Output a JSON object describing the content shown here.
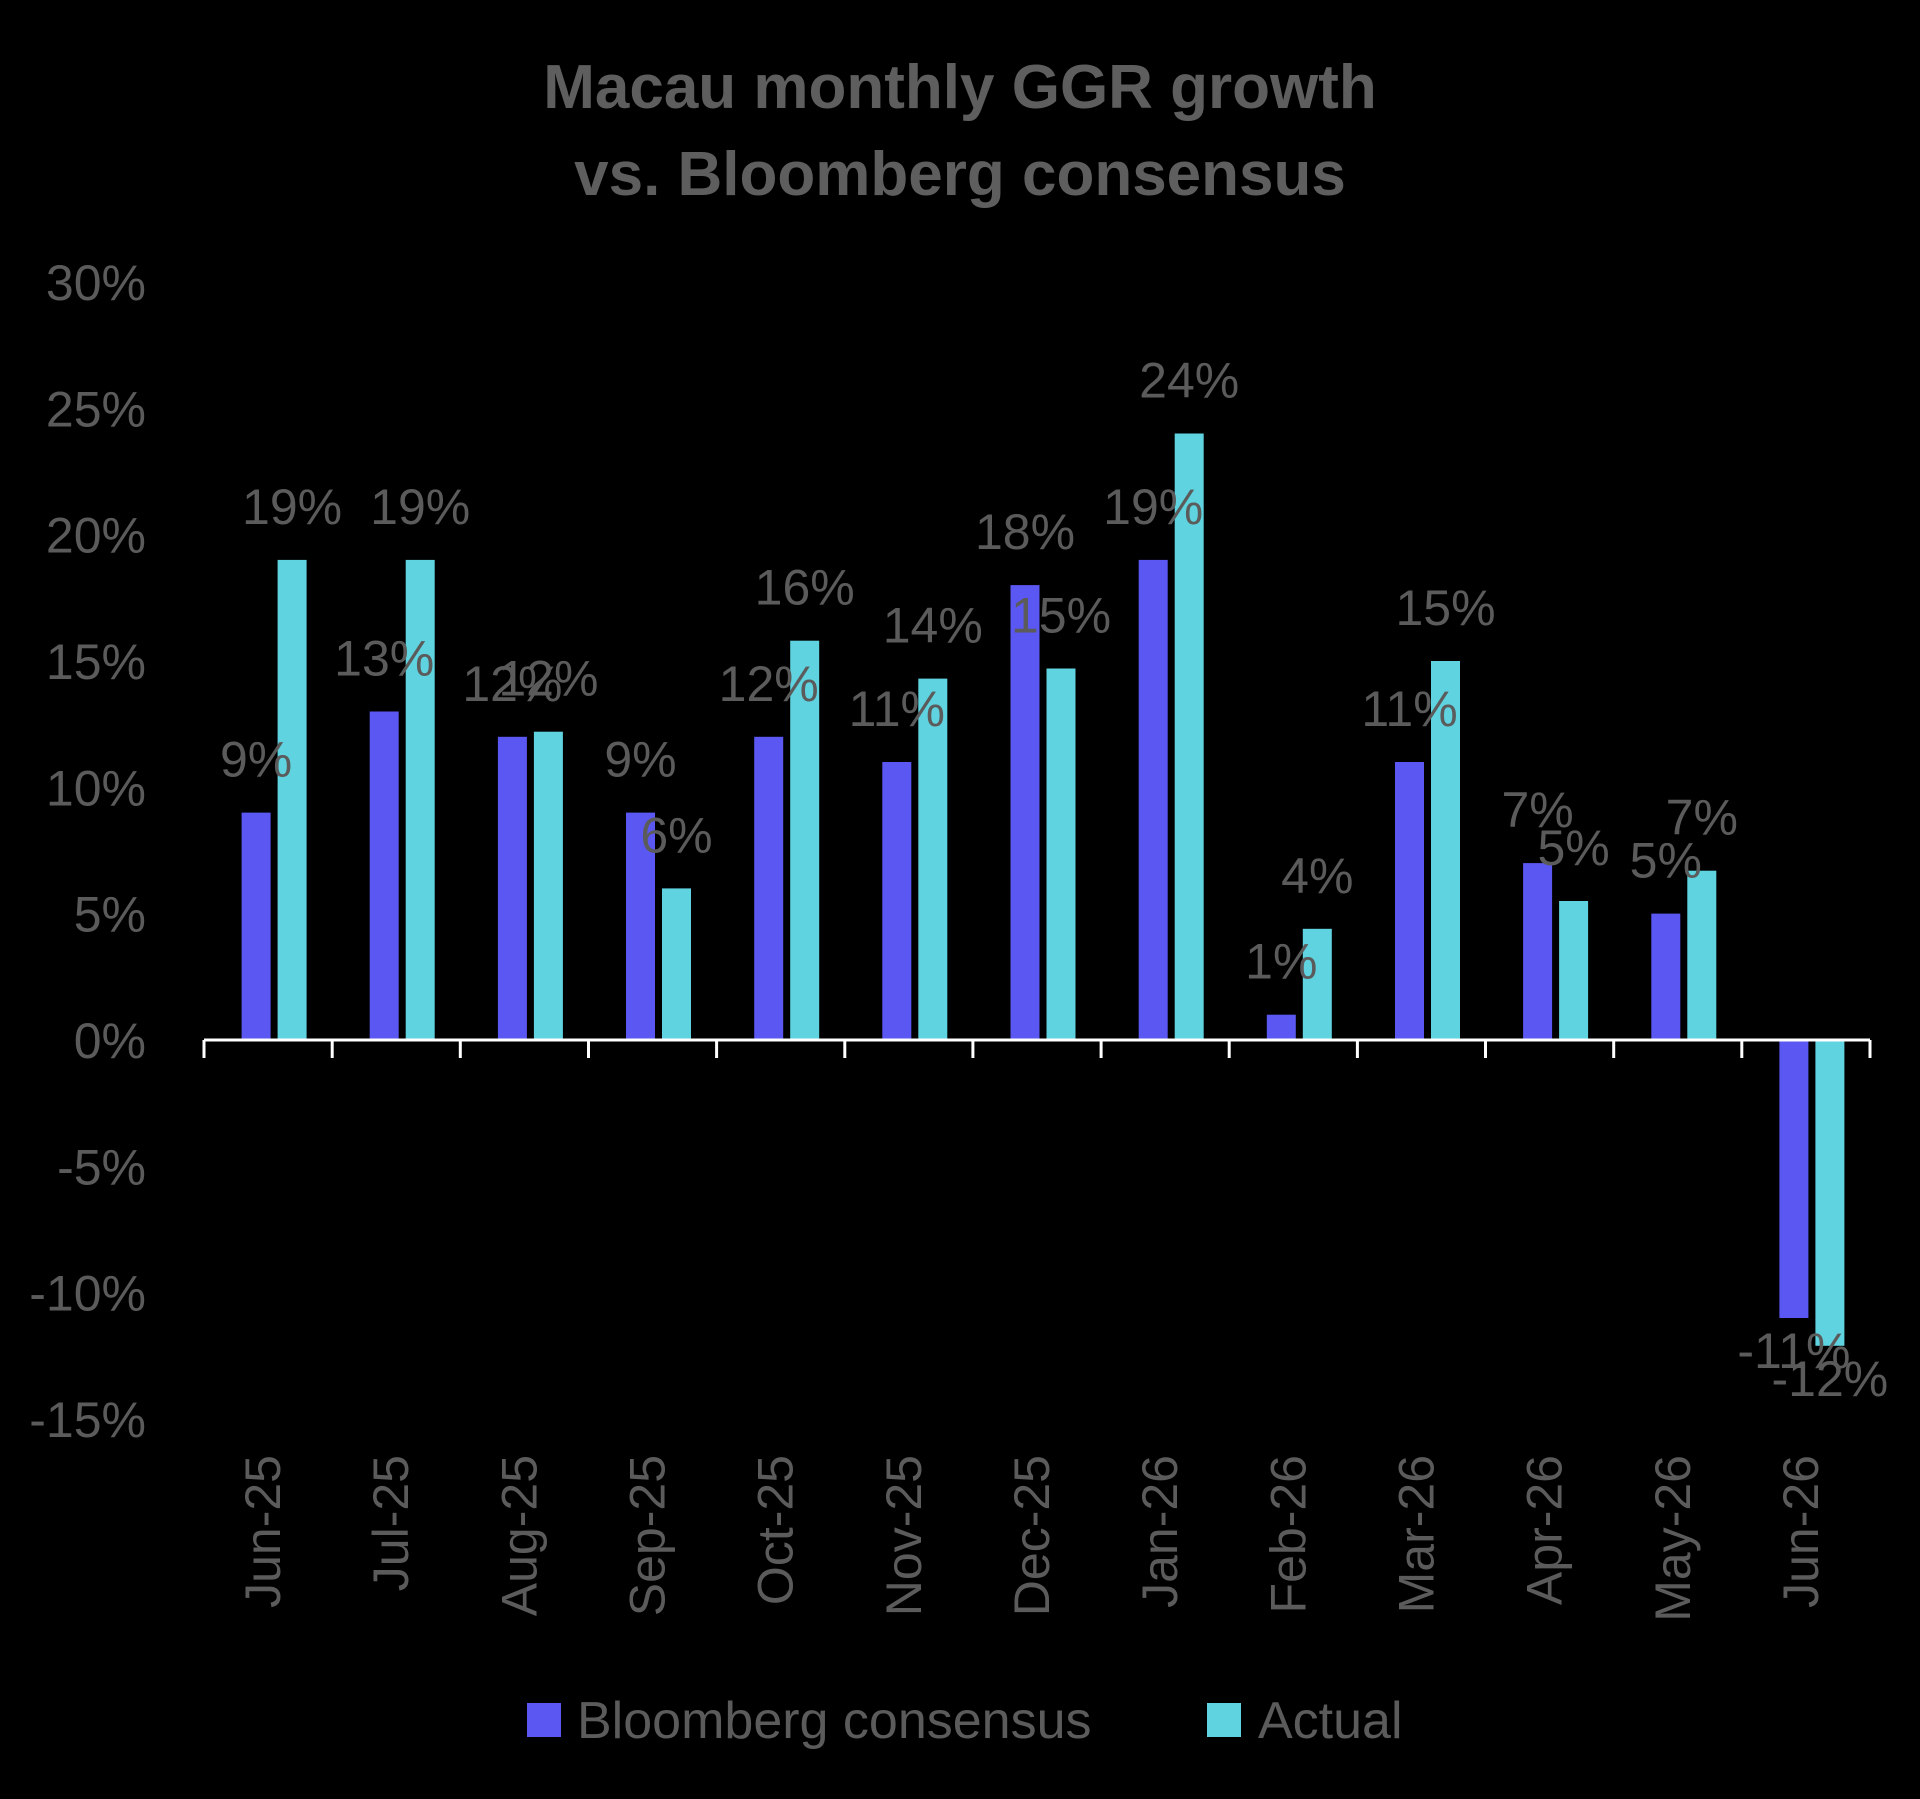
{
  "chart_data": {
    "type": "bar",
    "title_lines": [
      "Macau monthly GGR growth",
      "vs. Bloomberg consensus"
    ],
    "categories": [
      "Jun-25",
      "Jul-25",
      "Aug-25",
      "Sep-25",
      "Oct-25",
      "Nov-25",
      "Dec-25",
      "Jan-26",
      "Feb-26",
      "Mar-26",
      "Apr-26",
      "May-26",
      "Jun-26"
    ],
    "series": [
      {
        "name": "Bloomberg consensus",
        "color": "#5b57f2",
        "values": [
          9,
          13,
          12,
          9,
          12,
          11,
          18,
          19,
          1,
          11,
          7,
          5,
          -11
        ],
        "labels": [
          "9%",
          "13%",
          "12%",
          "9%",
          "12%",
          "11%",
          "18%",
          "19%",
          "1%",
          "11%",
          "7%",
          "5%",
          "-11%"
        ]
      },
      {
        "name": "Actual",
        "color": "#5fd3df",
        "values": [
          19,
          19,
          12.2,
          6,
          15.8,
          14.3,
          14.7,
          24,
          4.4,
          15,
          5.5,
          6.7,
          -12.1
        ],
        "labels": [
          "19%",
          "19%",
          "12%",
          "6%",
          "16%",
          "14%",
          "15%",
          "24%",
          "4%",
          "15%",
          "5%",
          "7%",
          "-12%"
        ]
      }
    ],
    "y_ticks": [
      "30%",
      "25%",
      "20%",
      "15%",
      "10%",
      "5%",
      "0%",
      "-5%",
      "-10%",
      "-15%"
    ],
    "y_tick_values": [
      30,
      25,
      20,
      15,
      10,
      5,
      0,
      -5,
      -10,
      -15
    ],
    "ylim": [
      -15,
      30
    ],
    "legend_position": "bottom",
    "grid": false
  }
}
